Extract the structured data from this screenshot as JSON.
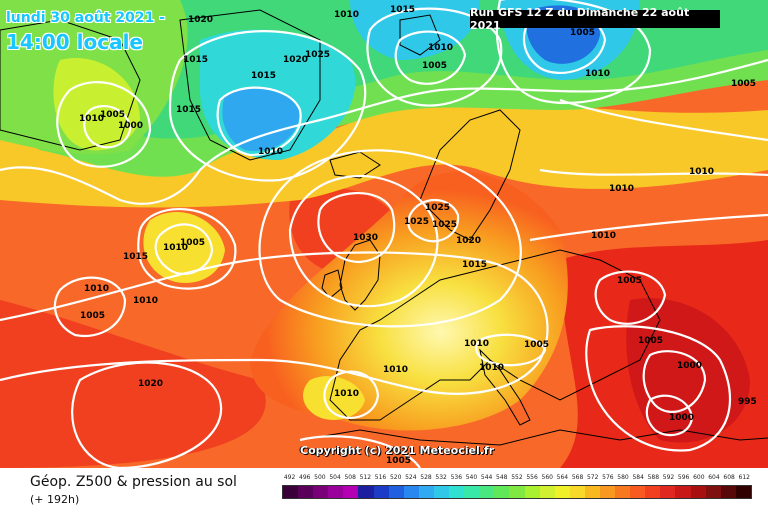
{
  "header": {
    "date_label": "lundi 30 août 2021 -",
    "time_label": "14:00 locale",
    "run_label": "Run GFS 12 Z du Dimanche 22 août 2021"
  },
  "copyright": "Copyright (c) 2021 Meteociel.fr",
  "legend": {
    "title": "Géop. Z500 & pression au sol",
    "subtitle": "(+ 192h)",
    "scale_values": [
      "492",
      "496",
      "500",
      "504",
      "508",
      "512",
      "516",
      "520",
      "524",
      "528",
      "532",
      "536",
      "540",
      "544",
      "548",
      "552",
      "556",
      "560",
      "564",
      "568",
      "572",
      "576",
      "580",
      "584",
      "588",
      "592",
      "596",
      "600",
      "604",
      "608",
      "612"
    ],
    "scale_colors": [
      "#3a003a",
      "#5a005a",
      "#7a007a",
      "#9a009a",
      "#b400b4",
      "#1e1ea0",
      "#1c3cc8",
      "#2060e0",
      "#2888f0",
      "#30aaf0",
      "#30c8e8",
      "#30e0d0",
      "#38e8a8",
      "#48e880",
      "#60e858",
      "#80e840",
      "#a8f030",
      "#d0f030",
      "#f0f028",
      "#f8d828",
      "#f8b820",
      "#f89820",
      "#f87820",
      "#f85a20",
      "#f04020",
      "#e02820",
      "#c81818",
      "#a81010",
      "#801010",
      "#580808",
      "#300000"
    ]
  },
  "pressure_labels": [
    "1020",
    "1010",
    "1015",
    "1005",
    "1015",
    "1020",
    "1025",
    "1015",
    "1010",
    "1000",
    "1015",
    "1010",
    "1010",
    "1005",
    "1010",
    "1010",
    "1005",
    "1005",
    "1005",
    "1010",
    "1030",
    "1025",
    "1025",
    "1025",
    "1020",
    "1015",
    "1010",
    "1010",
    "1005",
    "1015",
    "1010",
    "1005",
    "1010",
    "1020",
    "1010",
    "1010",
    "1005",
    "1005",
    "1000",
    "1000",
    "995",
    "1010",
    "1005",
    "1010"
  ]
}
